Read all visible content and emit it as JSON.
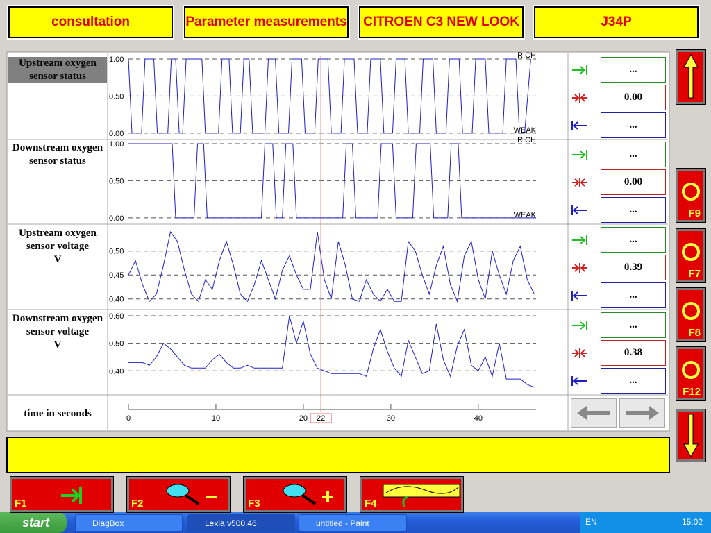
{
  "header": {
    "buttons": [
      "consultation",
      "Parameter measurements",
      "CITROEN C3 NEW LOOK",
      "J34P"
    ]
  },
  "panels": [
    {
      "label": "Upstream oxygen sensor status",
      "ylim": [
        -0.02,
        1.0
      ],
      "yticks": [
        {
          "value": 1,
          "label": "1.00"
        },
        {
          "value": 0.5,
          "label": "0.50"
        },
        {
          "value": 0,
          "label": "0.00"
        }
      ],
      "band_labels": [
        "RICH",
        "WEAK"
      ],
      "x": [
        0,
        0.4,
        1.5,
        1.9,
        2.9,
        3.3,
        4.5,
        4.9,
        5.4,
        5.8,
        6.2,
        6.6,
        8.4,
        8.8,
        10.3,
        10.7,
        11.5,
        11.9,
        12.8,
        13.2,
        13.8,
        14.2,
        15.6,
        16.0,
        16.8,
        17.2,
        18.3,
        18.7,
        19.8,
        20.2,
        21.3,
        21.7,
        22.8,
        23.2,
        24.3,
        24.7,
        25.8,
        26.2,
        27.3,
        27.7,
        28.8,
        29.2,
        30.2,
        30.6,
        31.6,
        32.0,
        33.3,
        33.7,
        34.8,
        35.2,
        36.3,
        36.7,
        37.8,
        38.2,
        39.3,
        39.7,
        40.8,
        41.2,
        42.8,
        43.2,
        44.3,
        44.7,
        45.3,
        46.0
      ],
      "values": [
        1,
        0,
        0,
        1,
        1,
        0,
        0,
        1,
        1,
        0,
        0,
        1,
        1,
        0,
        0,
        1,
        1,
        0,
        0,
        1,
        1,
        0,
        0,
        1,
        1,
        0,
        0,
        1,
        1,
        0,
        0,
        1,
        1,
        0,
        0,
        1,
        1,
        0,
        0,
        1,
        1,
        0,
        0,
        1,
        1,
        0,
        0,
        1,
        1,
        0,
        0,
        1,
        1,
        0,
        0,
        1,
        1,
        0,
        0,
        1,
        1,
        0,
        0,
        1
      ],
      "readings": {
        "max": "...",
        "current": "0.00",
        "min": "..."
      }
    },
    {
      "label": "Downstream oxygen sensor status",
      "ylim": [
        -0.02,
        1.0
      ],
      "yticks": [
        {
          "value": 1,
          "label": "1.00"
        },
        {
          "value": 0.5,
          "label": "0.50"
        },
        {
          "value": 0,
          "label": "0.00"
        }
      ],
      "band_labels": [
        "RICH",
        "WEAK"
      ],
      "x": [
        0,
        5.0,
        5.4,
        7.5,
        7.9,
        8.6,
        9.0,
        15.2,
        15.6,
        16.5,
        16.9,
        17.6,
        18.0,
        18.8,
        19.2,
        24.5,
        24.9,
        25.6,
        26.0,
        28.5,
        28.9,
        30.2,
        30.6,
        32.5,
        32.9,
        34.5,
        34.9,
        36.5,
        36.9,
        37.7,
        38.1,
        46.6
      ],
      "values": [
        1,
        1,
        0,
        0,
        1,
        1,
        0,
        0,
        1,
        1,
        0,
        0,
        1,
        1,
        0,
        0,
        1,
        1,
        0,
        0,
        1,
        1,
        0,
        0,
        1,
        1,
        0,
        0,
        1,
        1,
        0,
        0
      ],
      "readings": {
        "max": "...",
        "current": "0.00",
        "min": "..."
      }
    },
    {
      "label": "Upstream oxygen sensor voltage",
      "unit": "V",
      "ylim": [
        0.388,
        0.546
      ],
      "yticks": [
        {
          "value": 0.5,
          "label": "0.50"
        },
        0.45,
        {
          "value": 0.4,
          "label": "0.40"
        }
      ],
      "x": [
        0,
        0.8,
        1.6,
        2.4,
        3.2,
        4,
        4.8,
        5.6,
        6.4,
        7.2,
        8,
        8.8,
        9.6,
        10.4,
        11.2,
        12,
        12.8,
        13.6,
        14.4,
        15.2,
        16,
        16.8,
        17.6,
        18.4,
        19.2,
        20,
        20.8,
        21.6,
        22.4,
        23.2,
        24,
        24.8,
        25.6,
        26.4,
        27.2,
        28,
        28.8,
        29.6,
        30.4,
        31.2,
        32,
        32.8,
        33.6,
        34.4,
        35.2,
        36,
        36.8,
        37.6,
        38.4,
        39.2,
        40,
        40.8,
        41.6,
        42.4,
        43.2,
        44,
        44.8,
        45.6,
        46.4
      ],
      "values": [
        0.45,
        0.48,
        0.43,
        0.395,
        0.41,
        0.47,
        0.54,
        0.52,
        0.46,
        0.41,
        0.395,
        0.44,
        0.42,
        0.48,
        0.52,
        0.47,
        0.41,
        0.395,
        0.43,
        0.48,
        0.44,
        0.4,
        0.46,
        0.49,
        0.45,
        0.42,
        0.42,
        0.54,
        0.44,
        0.4,
        0.52,
        0.47,
        0.4,
        0.395,
        0.44,
        0.41,
        0.395,
        0.42,
        0.395,
        0.395,
        0.52,
        0.5,
        0.45,
        0.41,
        0.47,
        0.51,
        0.43,
        0.395,
        0.49,
        0.52,
        0.44,
        0.4,
        0.5,
        0.45,
        0.41,
        0.48,
        0.51,
        0.44,
        0.41
      ],
      "readings": {
        "max": "...",
        "current": "0.39",
        "min": "..."
      }
    },
    {
      "label": "Downstream oxygen sensor voltage",
      "unit": "V",
      "ylim": [
        0.33,
        0.605
      ],
      "yticks": [
        {
          "value": 0.6,
          "label": "0.60"
        },
        {
          "value": 0.5,
          "label": "0.50"
        },
        {
          "value": 0.4,
          "label": "0.40"
        }
      ],
      "x": [
        0,
        0.8,
        1.6,
        2.4,
        3.2,
        4,
        4.8,
        5.6,
        6.4,
        7.2,
        8,
        8.8,
        9.6,
        10.4,
        11.2,
        12,
        12.8,
        13.6,
        14.4,
        15.2,
        16,
        16.8,
        17.6,
        18.4,
        19.2,
        20,
        20.8,
        21.6,
        22.4,
        23.2,
        24,
        24.8,
        25.6,
        26.4,
        27.2,
        28,
        28.8,
        29.6,
        30.4,
        31.2,
        32,
        32.8,
        33.6,
        34.4,
        35.2,
        36,
        36.8,
        37.6,
        38.4,
        39.2,
        40,
        40.8,
        41.6,
        42.4,
        43.2,
        44,
        44.8,
        45.6,
        46.4
      ],
      "values": [
        0.43,
        0.43,
        0.43,
        0.42,
        0.45,
        0.5,
        0.48,
        0.45,
        0.42,
        0.41,
        0.41,
        0.41,
        0.44,
        0.46,
        0.43,
        0.41,
        0.41,
        0.42,
        0.41,
        0.41,
        0.41,
        0.41,
        0.41,
        0.6,
        0.5,
        0.58,
        0.46,
        0.41,
        0.4,
        0.39,
        0.39,
        0.39,
        0.39,
        0.39,
        0.38,
        0.48,
        0.55,
        0.47,
        0.41,
        0.38,
        0.51,
        0.45,
        0.39,
        0.4,
        0.57,
        0.44,
        0.38,
        0.49,
        0.55,
        0.42,
        0.4,
        0.45,
        0.38,
        0.5,
        0.37,
        0.37,
        0.37,
        0.35,
        0.34
      ],
      "readings": {
        "max": "...",
        "current": "0.38",
        "min": "..."
      }
    }
  ],
  "time_axis": {
    "label": "time in seconds",
    "xlim": [
      0,
      46.6
    ],
    "xticks": [
      0,
      10,
      20,
      30,
      40
    ],
    "cursor": 22
  },
  "side_keys": [
    "F9",
    "F7",
    "F8",
    "F12"
  ],
  "function_keys": [
    "F1",
    "F2",
    "F3",
    "F4"
  ],
  "taskbar": {
    "start": "start",
    "tasks": [
      "DiagBox",
      "Lexia v500.46",
      "untitled - Paint"
    ],
    "language": "EN",
    "clock": "15:02"
  }
}
